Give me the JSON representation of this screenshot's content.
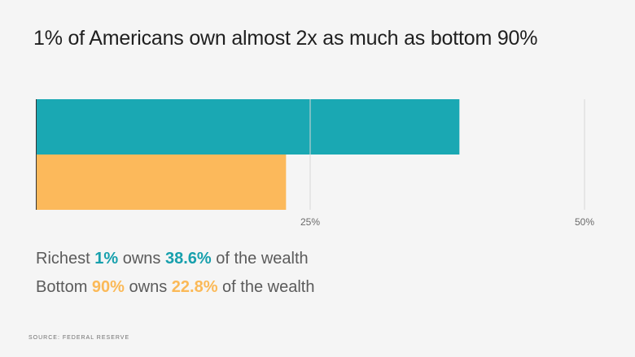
{
  "chart_data": {
    "type": "bar",
    "orientation": "horizontal",
    "title": "1% of Americans own almost 2x as much as bottom 90%",
    "categories": [
      "Richest 1%",
      "Bottom 90%"
    ],
    "values": [
      38.6,
      22.8
    ],
    "unit": "%",
    "colors": [
      "#1aa8b3",
      "#fcb95b"
    ],
    "xlim": [
      0,
      50
    ],
    "ticks": [
      {
        "value": 25,
        "label": "25%"
      },
      {
        "value": 50,
        "label": "50%"
      }
    ],
    "grid": true,
    "legend": [
      {
        "prefix": "Richest ",
        "group": "1%",
        "mid": " owns ",
        "share": "38.6%",
        "suffix": " of the wealth"
      },
      {
        "prefix": "Bottom ",
        "group": "90%",
        "mid": " owns ",
        "share": "22.8%",
        "suffix": " of the wealth"
      }
    ],
    "source": "SOURCE: FEDERAL RESERVE"
  }
}
